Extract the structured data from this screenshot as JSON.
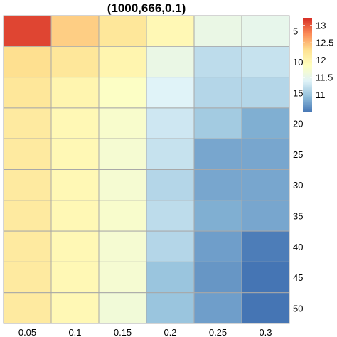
{
  "chart_data": {
    "type": "heatmap",
    "title": "(1000,666,0.1)",
    "x": [
      "0.05",
      "0.1",
      "0.15",
      "0.2",
      "0.25",
      "0.3"
    ],
    "y": [
      "5",
      "10",
      "15",
      "20",
      "25",
      "30",
      "35",
      "40",
      "45",
      "50"
    ],
    "values": [
      [
        13.1,
        12.4,
        12.2,
        11.95,
        11.55,
        11.5
      ],
      [
        12.3,
        12.2,
        12.0,
        11.55,
        11.2,
        11.25
      ],
      [
        12.2,
        12.0,
        11.8,
        11.4,
        11.15,
        11.15
      ],
      [
        12.15,
        11.95,
        11.75,
        11.3,
        11.05,
        10.85
      ],
      [
        12.15,
        11.95,
        11.7,
        11.25,
        10.8,
        10.8
      ],
      [
        12.15,
        11.95,
        11.7,
        11.15,
        10.8,
        10.8
      ],
      [
        12.15,
        11.95,
        11.75,
        11.2,
        10.85,
        10.8
      ],
      [
        12.15,
        11.95,
        11.7,
        11.15,
        10.75,
        10.55
      ],
      [
        12.15,
        11.95,
        11.7,
        11.0,
        10.7,
        10.5
      ],
      [
        12.15,
        11.95,
        11.65,
        11.0,
        10.75,
        10.5
      ]
    ],
    "colorbar": {
      "ticks": [
        11,
        11.5,
        12,
        12.5,
        13
      ],
      "range": [
        10.5,
        13.2
      ],
      "colors": [
        "#4575b4",
        "#91bfdb",
        "#e0f3f8",
        "#ffffbf",
        "#fee090",
        "#fc8d59",
        "#d73027"
      ]
    },
    "legend_position": "top-right",
    "grid": false
  }
}
